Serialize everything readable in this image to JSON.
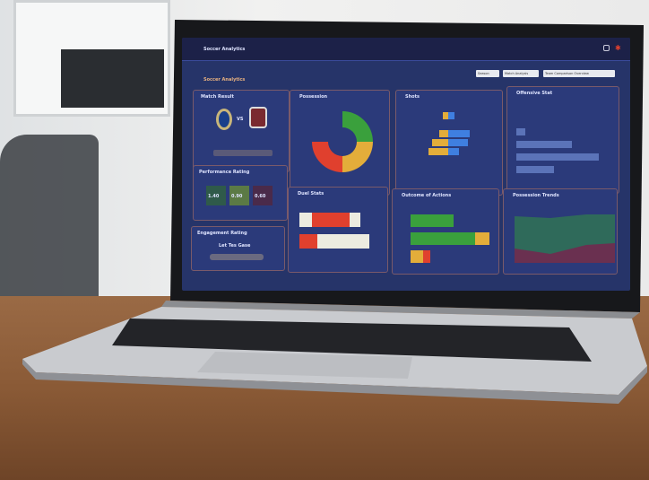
{
  "dashboard": {
    "app_title": "Soccer Analytics",
    "page_title": "Soccer Analytics",
    "filters": [
      "Season",
      "Match Analysis",
      "Team Comparison Overview"
    ],
    "panels": {
      "match": {
        "title": "Match Result",
        "vs": "VS"
      },
      "donut": {
        "title": "Possession"
      },
      "pyramid": {
        "title": "Shots"
      },
      "hbars": {
        "title": "Offensive Stat"
      },
      "rating": {
        "title": "Performance Rating",
        "tiles": [
          "1.40",
          "0.90",
          "0.60"
        ]
      },
      "gauge": {
        "title": "Duel Stats"
      },
      "stacked": {
        "title": "Outcome of Actions"
      },
      "area": {
        "title": "Possession Trends"
      },
      "summary": {
        "title": "Engagement Rating",
        "headline": "Let Tes Gase"
      }
    },
    "colors": {
      "green": "#3aa03c",
      "yellow": "#e3ad3a",
      "red": "#e0402e",
      "blue": "#3f7fe0",
      "panel": "#2b3a7a"
    }
  }
}
